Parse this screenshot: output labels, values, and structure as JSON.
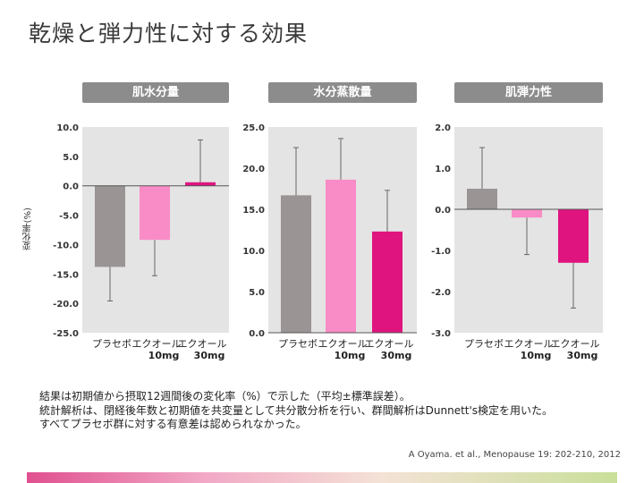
{
  "title": "乾燥と弾力性に対する効果",
  "ylabel": "変化率(%)",
  "colors": {
    "placebo": "#9b9494",
    "dose10": "#f98cc6",
    "dose30": "#e0147f",
    "panel_header": "#8c8c8c",
    "plot_bg": "#e4e4e4"
  },
  "chart_data": [
    {
      "type": "bar",
      "title": "肌水分量",
      "categories": [
        "プラセボ",
        "エクオール\n10mg",
        "エクオール\n30mg"
      ],
      "values": [
        -13.8,
        -9.2,
        0.6
      ],
      "error_upper": [
        -13.8,
        -9.2,
        7.8
      ],
      "error_lower": [
        -19.6,
        -15.3,
        0.6
      ],
      "ylim": [
        -25,
        10
      ],
      "yticks": [
        "10.0",
        "5.0",
        "0.0",
        "-5.0",
        "-10.0",
        "-15.0",
        "-20.0",
        "-25.0"
      ],
      "ytick_values": [
        10,
        5,
        0,
        -5,
        -10,
        -15,
        -20,
        -25
      ]
    },
    {
      "type": "bar",
      "title": "水分蒸散量",
      "categories": [
        "プラセボ",
        "エクオール\n10mg",
        "エクオール\n30mg"
      ],
      "values": [
        16.7,
        18.6,
        12.3
      ],
      "error_upper": [
        22.5,
        23.6,
        17.3
      ],
      "error_lower": [
        16.7,
        18.6,
        12.3
      ],
      "ylim": [
        0,
        25
      ],
      "yticks": [
        "25.0",
        "20.0",
        "15.0",
        "10.0",
        "5.0",
        "0.0"
      ],
      "ytick_values": [
        25,
        20,
        15,
        10,
        5,
        0
      ]
    },
    {
      "type": "bar",
      "title": "肌弾力性",
      "categories": [
        "プラセボ",
        "エクオール\n10mg",
        "エクオール\n30mg"
      ],
      "values": [
        0.5,
        -0.2,
        -1.3
      ],
      "error_upper": [
        1.5,
        -0.2,
        -1.3
      ],
      "error_lower": [
        0.5,
        -1.1,
        -2.4
      ],
      "ylim": [
        -3,
        2
      ],
      "yticks": [
        "2.0",
        "1.0",
        "0.0",
        "-1.0",
        "-2.0",
        "-3.0"
      ],
      "ytick_values": [
        2,
        1,
        0,
        -1,
        -2,
        -3
      ]
    }
  ],
  "notes": [
    "結果は初期値から摂取12週間後の変化率（%）で示した（平均±標準誤差）。",
    "統計解析は、閉経後年数と初期値を共変量として共分散分析を行い、群間解析はDunnett's検定を用いた。",
    "すべてプラセボ群に対する有意差は認められなかった。"
  ],
  "citation": "A Oyama. et al., Menopause 19: 202-210, 2012"
}
